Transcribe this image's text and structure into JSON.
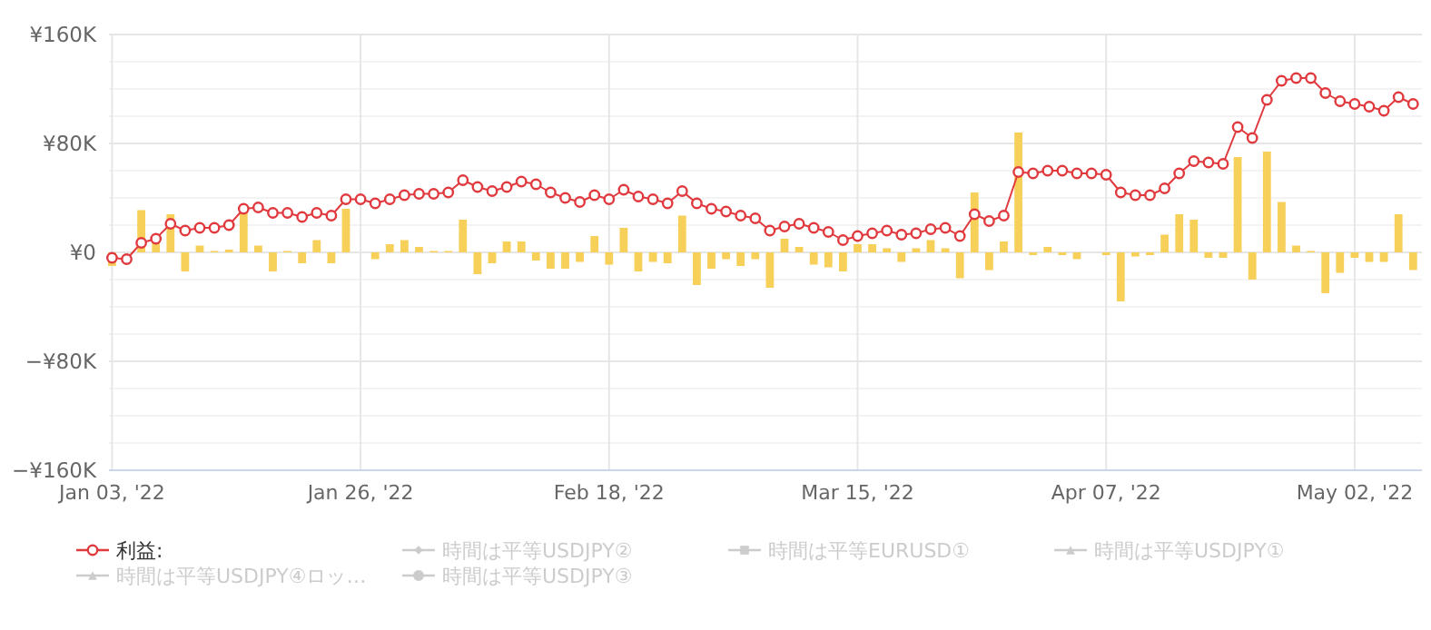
{
  "chart_data": {
    "type": "line",
    "categories": [
      "Jan 03, '22",
      null,
      null,
      null,
      null,
      null,
      null,
      null,
      null,
      null,
      null,
      null,
      null,
      null,
      null,
      null,
      null,
      "Jan 26, '22",
      null,
      null,
      null,
      null,
      null,
      null,
      null,
      null,
      null,
      null,
      null,
      null,
      null,
      null,
      null,
      null,
      "Feb 18, '22",
      null,
      null,
      null,
      null,
      null,
      null,
      null,
      null,
      null,
      null,
      null,
      null,
      null,
      null,
      null,
      null,
      "Mar 15, '22",
      null,
      null,
      null,
      null,
      null,
      null,
      null,
      null,
      null,
      null,
      null,
      null,
      null,
      null,
      null,
      null,
      "Apr 07, '22",
      null,
      null,
      null,
      null,
      null,
      null,
      null,
      null,
      null,
      null,
      null,
      null,
      null,
      null,
      null,
      null,
      "May 02, '22",
      null,
      null,
      null,
      null
    ],
    "series": [
      {
        "type": "bar",
        "color": "#f7d05a",
        "values": [
          -10000,
          0,
          31000,
          7000,
          28000,
          -14000,
          5000,
          1000,
          2000,
          32000,
          5000,
          -14000,
          1000,
          -8000,
          9000,
          -8000,
          32000,
          0,
          -5000,
          6000,
          9000,
          4000,
          1000,
          1000,
          24000,
          -16000,
          -8000,
          8000,
          8000,
          -6000,
          -12000,
          -12000,
          -7000,
          12000,
          -9000,
          18000,
          -14000,
          -7000,
          -8000,
          27000,
          -24000,
          -12000,
          -5000,
          -10000,
          -5000,
          -26000,
          10000,
          4000,
          -9000,
          -11000,
          -14000,
          6000,
          6000,
          3000,
          -7000,
          3000,
          9000,
          3000,
          -19000,
          44000,
          -13000,
          8000,
          88000,
          -2000,
          4000,
          -2000,
          -5000,
          0,
          -2000,
          -36000,
          -3000,
          -2000,
          13000,
          28000,
          24000,
          -4000,
          -4000,
          70000,
          -20000,
          74000,
          37000,
          5000,
          1000,
          -30000,
          -15000,
          -4000,
          -7000,
          -7000,
          28000,
          -13000
        ]
      },
      {
        "name": "利益:",
        "color": "#e0393e",
        "marker": "circle",
        "values": [
          -4000,
          -5000,
          7000,
          10000,
          21000,
          16000,
          18000,
          18000,
          20000,
          32000,
          33000,
          29000,
          29000,
          26000,
          29000,
          27000,
          39000,
          39000,
          36000,
          39000,
          42000,
          43000,
          43000,
          44000,
          53000,
          48000,
          45000,
          48000,
          52000,
          50000,
          44000,
          40000,
          37000,
          42000,
          39000,
          46000,
          41000,
          39000,
          36000,
          45000,
          36000,
          32000,
          30000,
          27000,
          25000,
          16000,
          19000,
          21000,
          18000,
          15000,
          9000,
          12000,
          14000,
          16000,
          13000,
          14000,
          17000,
          18000,
          12000,
          28000,
          23000,
          27000,
          59000,
          58000,
          60000,
          60000,
          58000,
          58000,
          57000,
          44000,
          42000,
          42000,
          47000,
          58000,
          67000,
          66000,
          65000,
          92000,
          84000,
          112000,
          126000,
          128000,
          128000,
          117000,
          111000,
          109000,
          107000,
          104000,
          114000,
          109000
        ]
      },
      {
        "name": "時間は平等USDJPY②",
        "color": "#cccccc",
        "marker": "diamond",
        "values": [
          null,
          null,
          null,
          null,
          null,
          null,
          null,
          null,
          null,
          null,
          null,
          null,
          null,
          null,
          null,
          null,
          null,
          null,
          null,
          null,
          null,
          null,
          null,
          null,
          null,
          null,
          null,
          null,
          null,
          null,
          null,
          null,
          null,
          null,
          null,
          null,
          null,
          null,
          null,
          null,
          null,
          null,
          null,
          null,
          null,
          null,
          null,
          null,
          null,
          null,
          null,
          null,
          null,
          null,
          null,
          null,
          null,
          null,
          null,
          null,
          null,
          null,
          null,
          null,
          null,
          null,
          null,
          null,
          null,
          null,
          null,
          null,
          null,
          null,
          null,
          null,
          null,
          null,
          null,
          null,
          null,
          null,
          null,
          null,
          null,
          null,
          null,
          null,
          null,
          null
        ]
      },
      {
        "name": "時間は平等EURUSD①",
        "color": "#cccccc",
        "marker": "square",
        "values": [
          null,
          null,
          null,
          null,
          null,
          null,
          null,
          null,
          null,
          null,
          null,
          null,
          null,
          null,
          null,
          null,
          null,
          null,
          null,
          null,
          null,
          null,
          null,
          null,
          null,
          null,
          null,
          null,
          null,
          null,
          null,
          null,
          null,
          null,
          null,
          null,
          null,
          null,
          null,
          null,
          null,
          null,
          null,
          null,
          null,
          null,
          null,
          null,
          null,
          null,
          null,
          null,
          null,
          null,
          null,
          null,
          null,
          null,
          null,
          null,
          null,
          null,
          null,
          null,
          null,
          null,
          null,
          null,
          null,
          null,
          null,
          null,
          null,
          null,
          null,
          null,
          null,
          null,
          null,
          null,
          null,
          null,
          null,
          null,
          null,
          null,
          null,
          null,
          null,
          null
        ]
      },
      {
        "name": "時間は平等USDJPY①",
        "color": "#cccccc",
        "marker": "triangle",
        "values": [
          null,
          null,
          null,
          null,
          null,
          null,
          null,
          null,
          null,
          null,
          null,
          null,
          null,
          null,
          null,
          null,
          null,
          null,
          null,
          null,
          null,
          null,
          null,
          null,
          null,
          null,
          null,
          null,
          null,
          null,
          null,
          null,
          null,
          null,
          null,
          null,
          null,
          null,
          null,
          null,
          null,
          null,
          null,
          null,
          null,
          null,
          null,
          null,
          null,
          null,
          null,
          null,
          null,
          null,
          null,
          null,
          null,
          null,
          null,
          null,
          null,
          null,
          null,
          null,
          null,
          null,
          null,
          null,
          null,
          null,
          null,
          null,
          null,
          null,
          null,
          null,
          null,
          null,
          null,
          null,
          null,
          null,
          null,
          null,
          null,
          null,
          null,
          null,
          null,
          null
        ]
      },
      {
        "name": "時間は平等USDJPY④ロッ…",
        "color": "#cccccc",
        "marker": "triangle",
        "values": [
          null,
          null,
          null,
          null,
          null,
          null,
          null,
          null,
          null,
          null,
          null,
          null,
          null,
          null,
          null,
          null,
          null,
          null,
          null,
          null,
          null,
          null,
          null,
          null,
          null,
          null,
          null,
          null,
          null,
          null,
          null,
          null,
          null,
          null,
          null,
          null,
          null,
          null,
          null,
          null,
          null,
          null,
          null,
          null,
          null,
          null,
          null,
          null,
          null,
          null,
          null,
          null,
          null,
          null,
          null,
          null,
          null,
          null,
          null,
          null,
          null,
          null,
          null,
          null,
          null,
          null,
          null,
          null,
          null,
          null,
          null,
          null,
          null,
          null,
          null,
          null,
          null,
          null,
          null,
          null,
          null,
          null,
          null,
          null,
          null,
          null,
          null,
          null,
          null,
          null
        ]
      },
      {
        "name": "時間は平等USDJPY③",
        "color": "#cccccc",
        "marker": "circle",
        "values": [
          null,
          null,
          null,
          null,
          null,
          null,
          null,
          null,
          null,
          null,
          null,
          null,
          null,
          null,
          null,
          null,
          null,
          null,
          null,
          null,
          null,
          null,
          null,
          null,
          null,
          null,
          null,
          null,
          null,
          null,
          null,
          null,
          null,
          null,
          null,
          null,
          null,
          null,
          null,
          null,
          null,
          null,
          null,
          null,
          null,
          null,
          null,
          null,
          null,
          null,
          null,
          null,
          null,
          null,
          null,
          null,
          null,
          null,
          null,
          null,
          null,
          null,
          null,
          null,
          null,
          null,
          null,
          null,
          null,
          null,
          null,
          null,
          null,
          null,
          null,
          null,
          null,
          null,
          null,
          null,
          null,
          null,
          null,
          null,
          null,
          null,
          null,
          null,
          null,
          null
        ]
      }
    ],
    "ylim": [
      -160000,
      160000
    ],
    "yticks": [
      {
        "value": -160000,
        "label": "−¥160K"
      },
      {
        "value": -140000,
        "label": null
      },
      {
        "value": -120000,
        "label": null
      },
      {
        "value": -100000,
        "label": null
      },
      {
        "value": -80000,
        "label": "−¥80K"
      },
      {
        "value": -60000,
        "label": null
      },
      {
        "value": -40000,
        "label": null
      },
      {
        "value": -20000,
        "label": null
      },
      {
        "value": 0,
        "label": "¥0"
      },
      {
        "value": 20000,
        "label": null
      },
      {
        "value": 40000,
        "label": null
      },
      {
        "value": 60000,
        "label": null
      },
      {
        "value": 80000,
        "label": "¥80K"
      },
      {
        "value": 100000,
        "label": null
      },
      {
        "value": 120000,
        "label": null
      },
      {
        "value": 140000,
        "label": null
      },
      {
        "value": 160000,
        "label": "¥160K"
      }
    ],
    "grid": true,
    "legend": "bottom"
  }
}
